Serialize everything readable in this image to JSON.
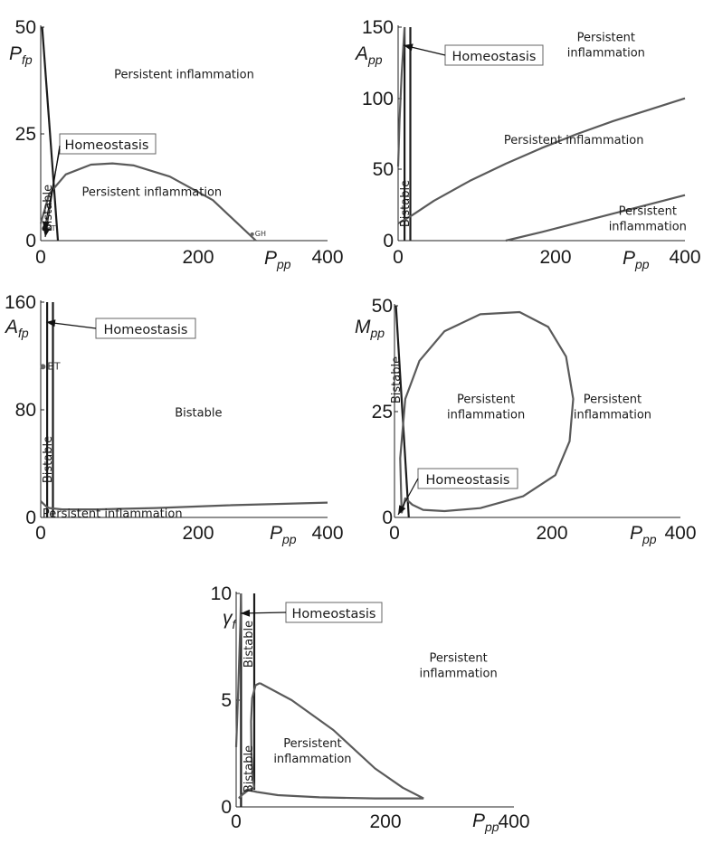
{
  "chart_data": [
    {
      "type": "line",
      "xlabel": "P",
      "xlabel_sub": "pp",
      "ylabel": "P",
      "ylabel_sub": "fp",
      "xlim": [
        0,
        400
      ],
      "ylim": [
        0,
        50
      ],
      "xticks": [
        "0",
        "200",
        "400"
      ],
      "yticks": [
        "0",
        "25",
        "50"
      ],
      "regions": [
        {
          "label": "Persistent inflammation",
          "x": 200,
          "y": 38
        },
        {
          "label": "Persistent inflammation",
          "x": 155,
          "y": 10.5
        }
      ],
      "bistable_label": "Bistable",
      "homeostasis_label": "Homeostasis",
      "points": [
        {
          "label": "BT",
          "x": 4,
          "y": 2.8
        },
        {
          "label": "GH",
          "x": 295,
          "y": 1.5
        }
      ],
      "series": [
        {
          "color": "#1c1c1c",
          "x": [
            2,
            24
          ],
          "y": [
            50,
            0
          ]
        },
        {
          "color": "#5a5a5a",
          "x": [
            0,
            12,
            35,
            70,
            100,
            130,
            180,
            240,
            300
          ],
          "y": [
            4,
            11,
            15.5,
            17.8,
            18.1,
            17.6,
            15,
            9.5,
            0
          ]
        }
      ]
    },
    {
      "type": "line",
      "xlabel": "P",
      "xlabel_sub": "pp",
      "ylabel": "A",
      "ylabel_sub": "pp",
      "xlim": [
        0,
        400
      ],
      "ylim": [
        0,
        150
      ],
      "xticks": [
        "0",
        "200",
        "400"
      ],
      "yticks": [
        "0",
        "50",
        "100",
        "150"
      ],
      "regions": [
        {
          "label": "Persistent",
          "label2": "inflammation",
          "x": 290,
          "y": 140
        },
        {
          "label": "Persistent inflammation",
          "x": 245,
          "y": 68
        },
        {
          "label": "Persistent",
          "label2": "inflammation",
          "x": 348,
          "y": 18
        }
      ],
      "bistable_label": "Bistable",
      "homeostasis_label": "Homeostasis",
      "series": [
        {
          "color": "#1c1c1c",
          "x": [
            17,
            17
          ],
          "y": [
            150,
            0
          ]
        },
        {
          "color": "#1c1c1c",
          "x": [
            9,
            9
          ],
          "y": [
            150,
            0
          ]
        },
        {
          "color": "#5a5a5a",
          "x": [
            0,
            2,
            5,
            9
          ],
          "y": [
            52,
            85,
            118,
            150
          ]
        },
        {
          "color": "#5a5a5a",
          "x": [
            0,
            20,
            50,
            100,
            150,
            200,
            250,
            300,
            350,
            400
          ],
          "y": [
            12,
            18,
            28,
            42,
            54,
            65,
            75,
            84,
            92,
            100
          ]
        },
        {
          "color": "#5a5a5a",
          "x": [
            150,
            200,
            250,
            300,
            350,
            400
          ],
          "y": [
            0,
            6,
            12.5,
            19,
            25.5,
            32
          ]
        }
      ]
    },
    {
      "type": "line",
      "xlabel": "P",
      "xlabel_sub": "pp",
      "ylabel": "A",
      "ylabel_sub": "fp",
      "xlim": [
        0,
        400
      ],
      "ylim": [
        0,
        160
      ],
      "xticks": [
        "0",
        "200",
        "400"
      ],
      "yticks": [
        "0",
        "80",
        "160"
      ],
      "regions": [
        {
          "label": "Bistable",
          "x": 220,
          "y": 75
        },
        {
          "label": "Persistent inflammation",
          "x": 100,
          "y": 0
        }
      ],
      "bistable_label": "Bistable",
      "homeostasis_label": "Homeostasis",
      "points": [
        {
          "label": "BT",
          "x": 3,
          "y": 112
        }
      ],
      "series": [
        {
          "color": "#1c1c1c",
          "x": [
            17,
            17
          ],
          "y": [
            160,
            0
          ]
        },
        {
          "color": "#1c1c1c",
          "x": [
            9,
            9
          ],
          "y": [
            160,
            0
          ]
        },
        {
          "color": "#5a5a5a",
          "x": [
            0,
            4,
            8,
            12,
            30,
            80,
            160,
            260,
            400
          ],
          "y": [
            12,
            10,
            8,
            7,
            6,
            6,
            7,
            9,
            11
          ]
        }
      ]
    },
    {
      "type": "line",
      "xlabel": "P",
      "xlabel_sub": "pp",
      "ylabel": "M",
      "ylabel_sub": "pp",
      "xlim": [
        0,
        400
      ],
      "ylim": [
        0,
        50
      ],
      "xticks": [
        "0",
        "200",
        "400"
      ],
      "yticks": [
        "0",
        "25",
        "50"
      ],
      "regions": [
        {
          "label": "Persistent",
          "label2": "inflammation",
          "x": 128,
          "y": 27
        },
        {
          "label": "Persistent",
          "label2": "inflammation",
          "x": 305,
          "y": 27
        }
      ],
      "bistable_label": "Bistable",
      "homeostasis_label": "Homeostasis",
      "series": [
        {
          "color": "#1c1c1c",
          "x": [
            2,
            20
          ],
          "y": [
            50,
            0
          ]
        },
        {
          "color": "#5a5a5a",
          "x": [
            10,
            8,
            15,
            35,
            70,
            120,
            175,
            215,
            240,
            250,
            245,
            225,
            180,
            120,
            70,
            40,
            25,
            15,
            10
          ],
          "y": [
            1,
            14,
            28,
            37,
            44,
            48,
            48.5,
            45,
            38,
            28,
            18,
            10,
            5,
            2.2,
            1.5,
            1.8,
            3,
            4.5,
            1
          ]
        }
      ]
    },
    {
      "type": "line",
      "xlabel": "P",
      "xlabel_sub": "pp",
      "ylabel": "γ",
      "ylabel_sub": "f",
      "xlim": [
        0,
        400
      ],
      "ylim": [
        0,
        10
      ],
      "xticks": [
        "0",
        "200",
        "400"
      ],
      "yticks": [
        "0",
        "5",
        "10"
      ],
      "regions": [
        {
          "label": "Persistent",
          "label2": "inflammation",
          "x": 320,
          "y": 6.8
        },
        {
          "label": "Persistent",
          "label2": "inflammation",
          "x": 110,
          "y": 2.8
        }
      ],
      "bistable_label": "Bistable",
      "homeostasis_label": "Homeostasis",
      "series": [
        {
          "color": "#1c1c1c",
          "x": [
            26,
            26
          ],
          "y": [
            10,
            0.8
          ]
        },
        {
          "color": "#1c1c1c",
          "x": [
            7,
            7
          ],
          "y": [
            10,
            0
          ]
        },
        {
          "color": "#5a5a5a",
          "x": [
            0,
            3,
            6,
            7
          ],
          "y": [
            2.8,
            5.5,
            8.5,
            10
          ]
        },
        {
          "color": "#5a5a5a",
          "x": [
            26,
            18,
            12,
            8,
            5,
            4
          ],
          "y": [
            0.9,
            0.8,
            0.65,
            0.55,
            0.45,
            0.4
          ]
        },
        {
          "color": "#5a5a5a",
          "x": [
            26,
            24,
            22,
            21.5,
            23,
            28,
            34
          ],
          "y": [
            0.9,
            1.3,
            2.5,
            4,
            5.1,
            5.7,
            5.8
          ]
        },
        {
          "color": "#5a5a5a",
          "x": [
            34,
            80,
            140,
            200,
            240,
            270
          ],
          "y": [
            5.8,
            5.0,
            3.6,
            1.8,
            0.9,
            0.4
          ]
        },
        {
          "color": "#5a5a5a",
          "x": [
            270,
            200,
            120,
            60,
            30,
            15,
            4
          ],
          "y": [
            0.4,
            0.4,
            0.45,
            0.55,
            0.7,
            0.8,
            0.4
          ]
        }
      ]
    }
  ]
}
